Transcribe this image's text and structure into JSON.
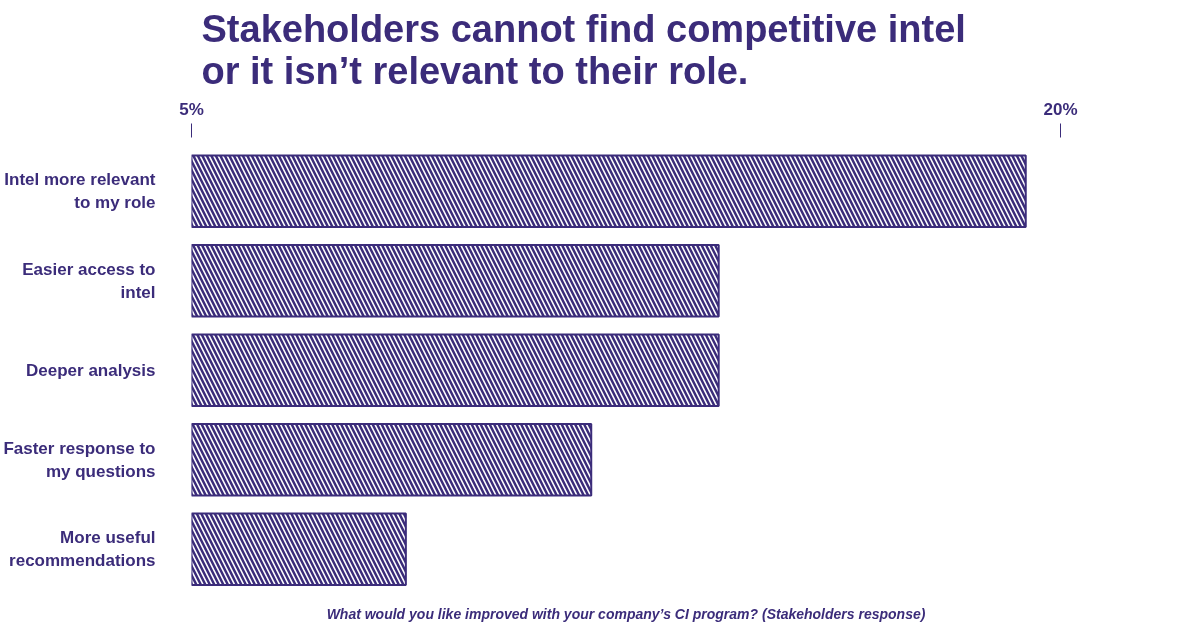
{
  "chart_data": {
    "type": "bar",
    "orientation": "horizontal",
    "title": "Stakeholders cannot find competitive intel or it isn’t relevant to their role.",
    "categories": [
      "Intel more relevant to my role",
      "Easier access to intel",
      "Deeper analysis",
      "Faster response to my questions",
      "More useful recommendations"
    ],
    "base": [
      5,
      5,
      5,
      5,
      5
    ],
    "values": [
      14.4,
      9.1,
      9.1,
      6.9,
      3.7
    ],
    "color": "#3b2c7a",
    "xlim": [
      5,
      20
    ],
    "xticks": [
      {
        "value": 5,
        "label": "5%"
      },
      {
        "value": 20,
        "label": "20%"
      }
    ],
    "grid": false,
    "annotations": [
      "What would you like improved with your company’s CI program? (Stakeholders response)"
    ]
  }
}
